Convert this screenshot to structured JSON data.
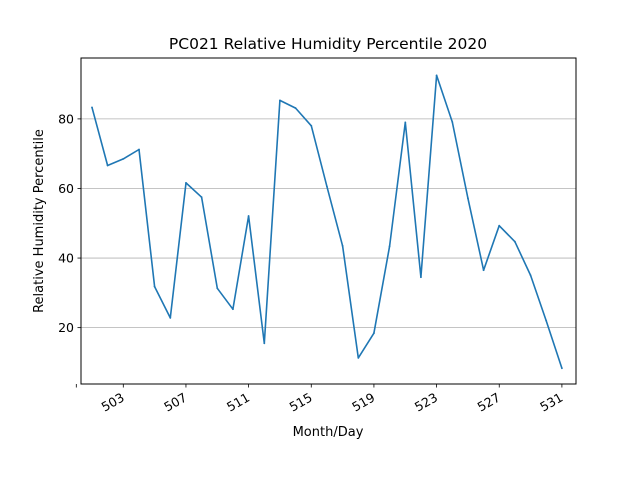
{
  "chart_data": {
    "type": "line",
    "title": "PC021 Relative Humidity Percentile 2020",
    "xlabel": "Month/Day",
    "ylabel": "Relative Humidity Percentile",
    "x_tick_labels": [
      "503",
      "507",
      "511",
      "515",
      "519",
      "523",
      "527",
      "531"
    ],
    "x_tick_days": [
      3,
      7,
      11,
      15,
      19,
      23,
      27,
      31
    ],
    "x_minor_ticks": [
      0
    ],
    "y_ticks": [
      20,
      40,
      60,
      80
    ],
    "xlim": [
      0.3,
      31.9
    ],
    "ylim": [
      3.8,
      97.5
    ],
    "grid": "y-major",
    "line_color": "#1f77b4",
    "series": [
      {
        "x": [
          1,
          2,
          3,
          4,
          5,
          6,
          7,
          8,
          9,
          10,
          11,
          12,
          13,
          14,
          15,
          16,
          17,
          18,
          19,
          20,
          21,
          22,
          23,
          24,
          25,
          26,
          27,
          28,
          29,
          30,
          31
        ],
        "values": [
          83.3,
          66.6,
          68.5,
          71.2,
          31.8,
          22.8,
          61.6,
          57.5,
          31.3,
          25.3,
          52.1,
          15.5,
          85.3,
          83.1,
          78.0,
          60.6,
          43.5,
          11.3,
          18.4,
          43.4,
          79.0,
          34.5,
          92.5,
          79.1,
          57.2,
          36.5,
          49.3,
          44.7,
          35.0,
          22.0,
          8.3
        ]
      }
    ]
  }
}
